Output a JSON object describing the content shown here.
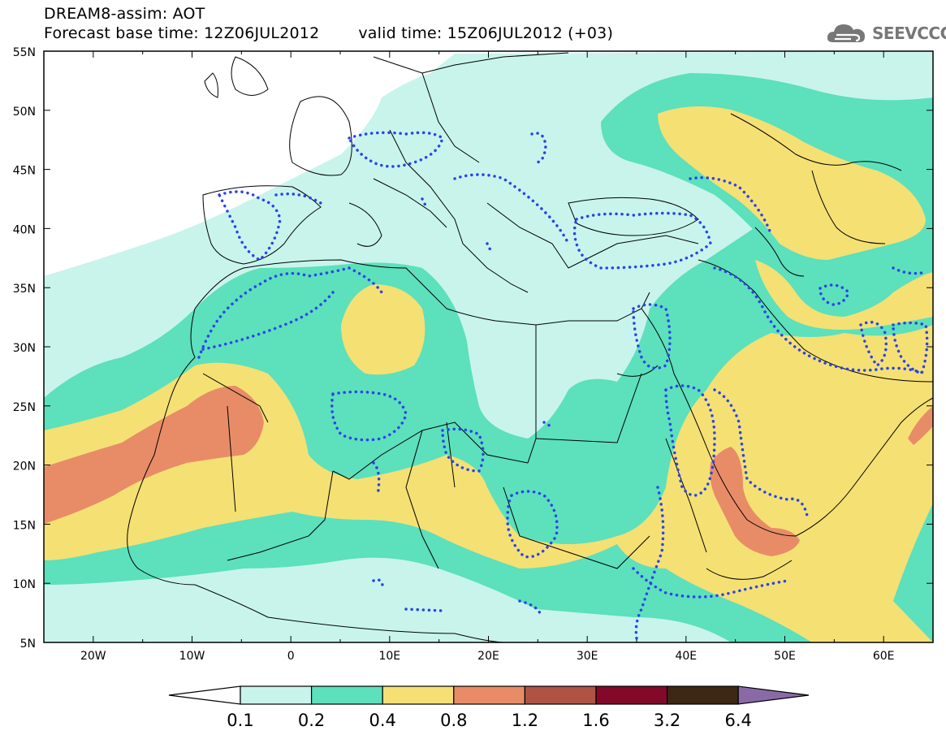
{
  "header": {
    "title": "DREAM8-assim: AOT",
    "base_time": "Forecast base time: 12Z06JUL2012",
    "valid_time": "valid time: 15Z06JUL2012 (+03)"
  },
  "logo": {
    "text": "SEEVCCC",
    "icon": "cloud-icon"
  },
  "map": {
    "lat_labels": [
      "55N",
      "50N",
      "45N",
      "40N",
      "35N",
      "30N",
      "25N",
      "20N",
      "15N",
      "10N",
      "5N"
    ],
    "lon_labels": [
      "20W",
      "10W",
      "0",
      "10E",
      "20E",
      "30E",
      "40E",
      "50E",
      "60E"
    ]
  },
  "colorbar": {
    "labels": [
      "0.1",
      "0.2",
      "0.4",
      "0.8",
      "1.2",
      "1.6",
      "3.2",
      "6.4"
    ],
    "colors": [
      "#c8f4ec",
      "#5de0bc",
      "#f5e074",
      "#e88c68",
      "#ad5444",
      "#820a28",
      "#3c2814",
      "#8a6aa6"
    ]
  }
}
